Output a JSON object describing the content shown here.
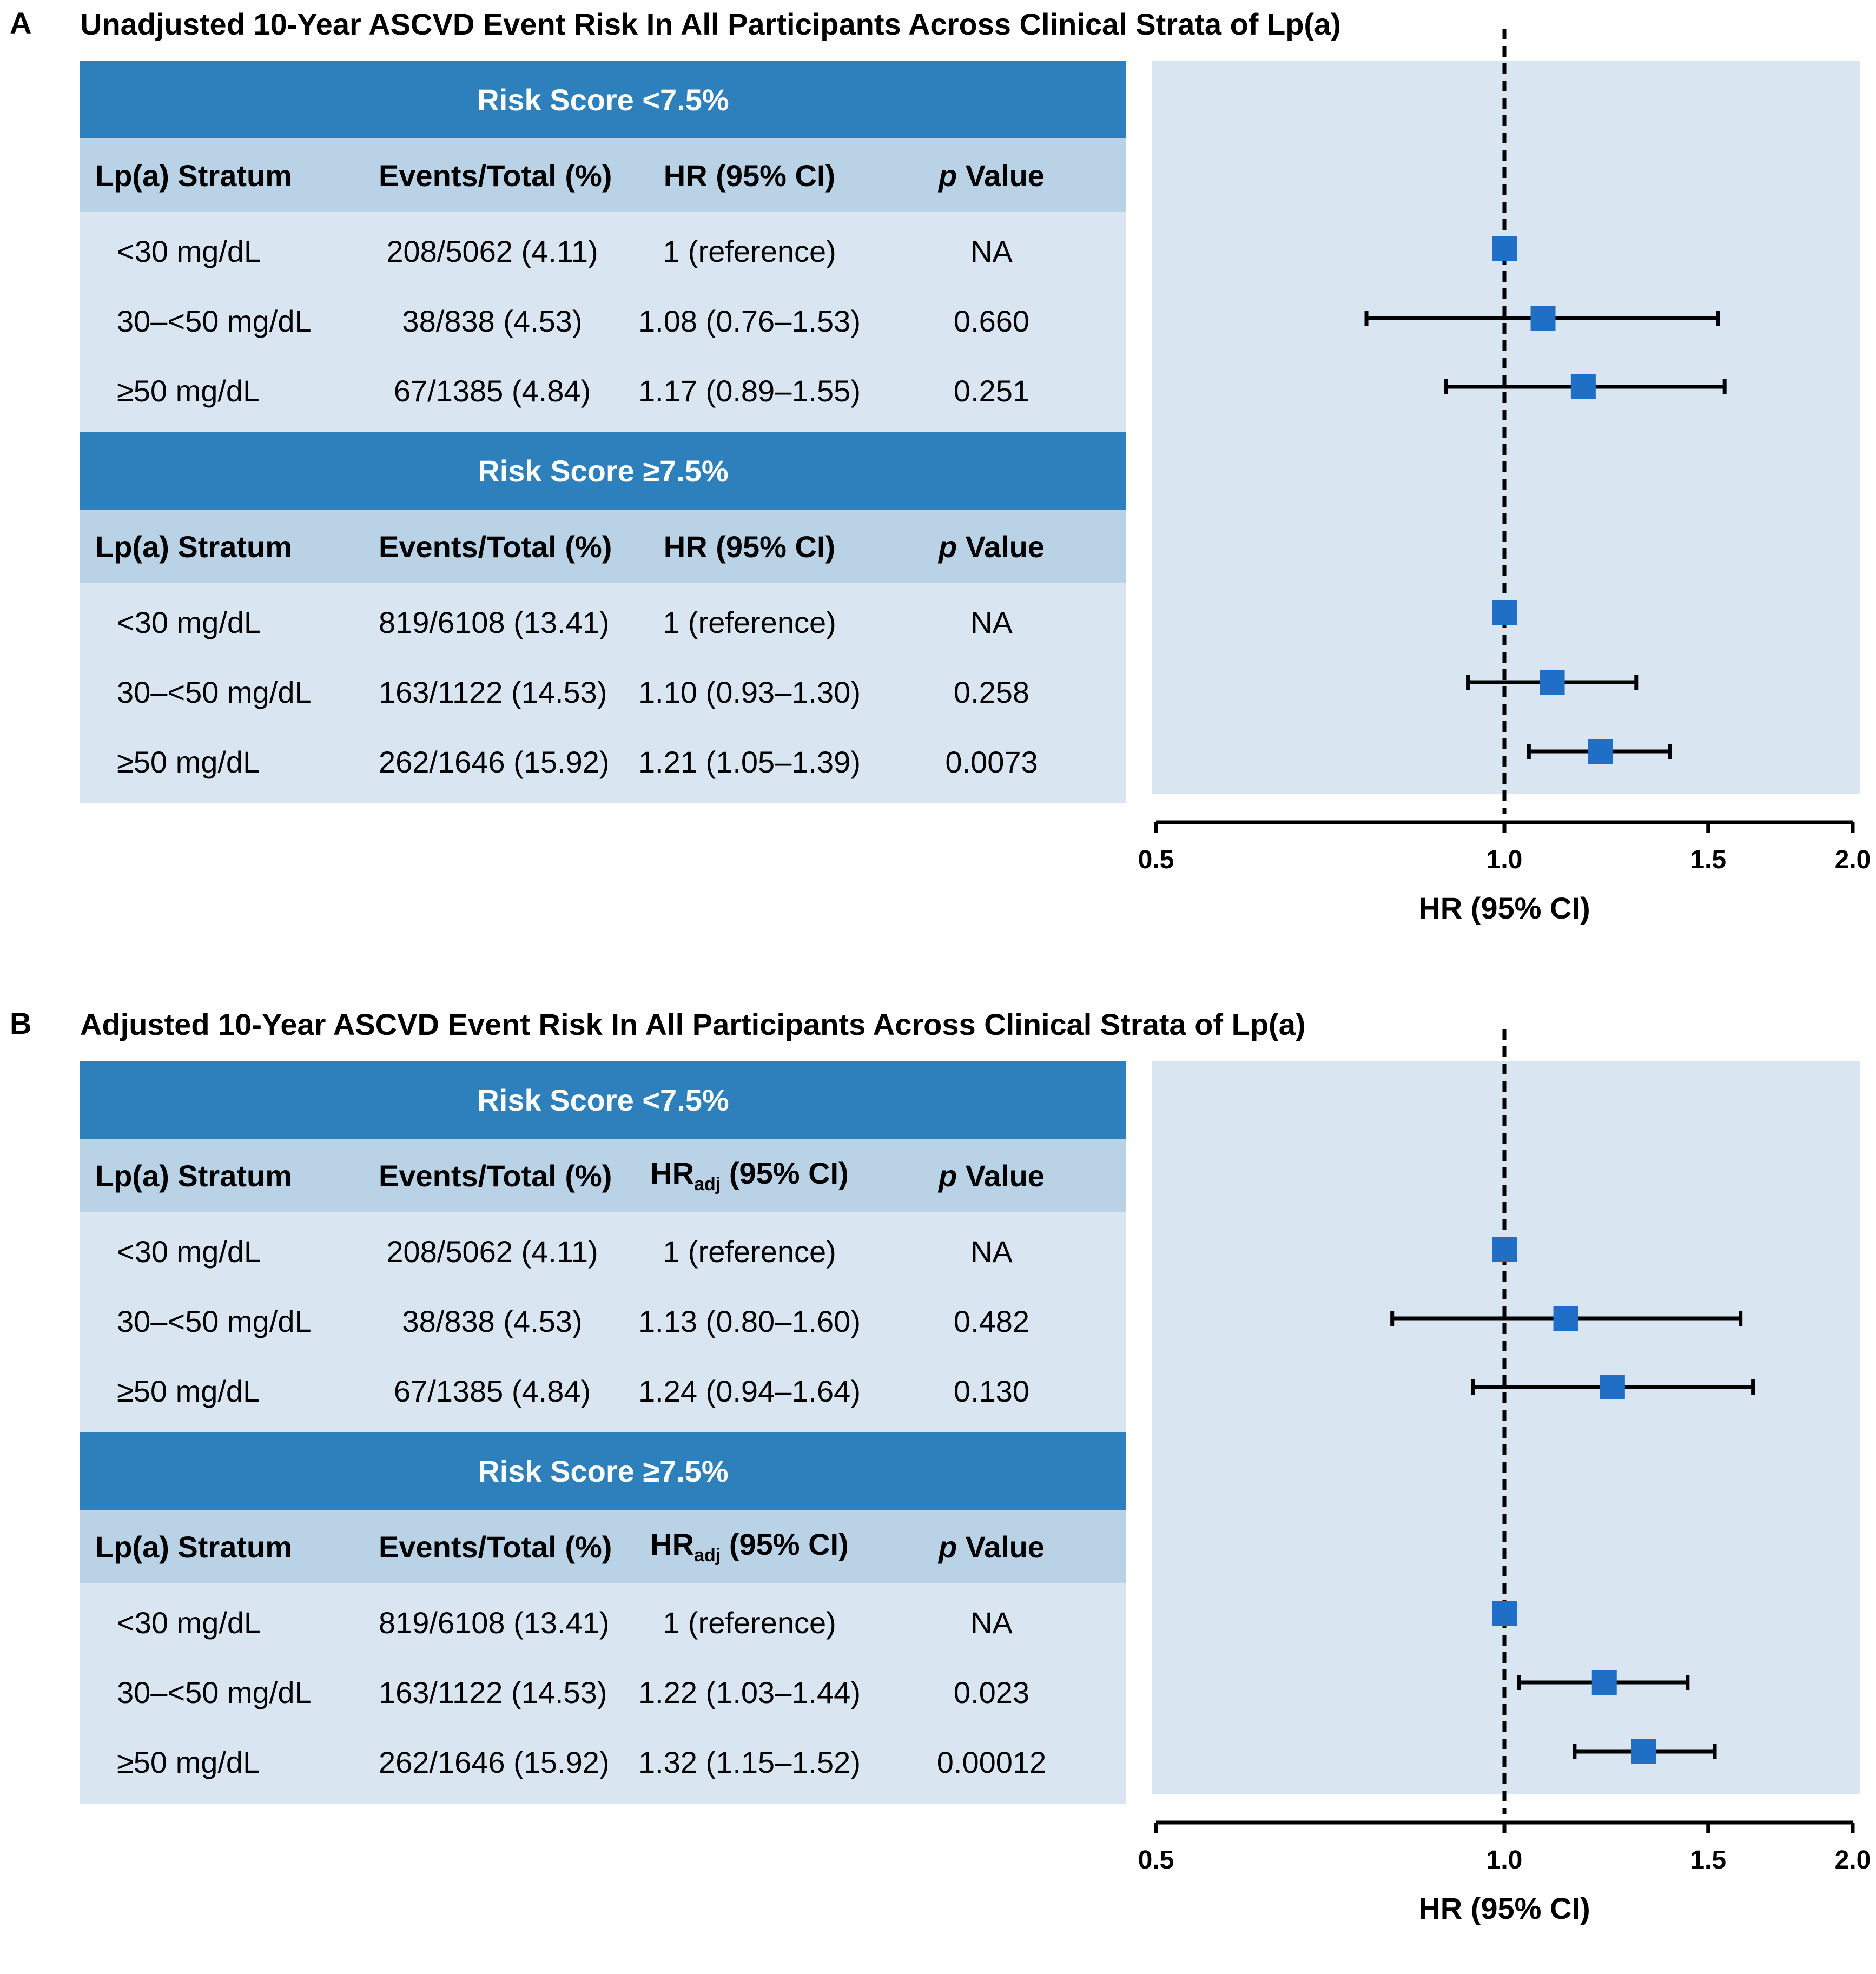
{
  "chart_data": [
    {
      "type": "forest",
      "panel": "A",
      "title": "Unadjusted 10-Year ASCVD Event Risk In All Participants Across Clinical Strata of Lp(a)",
      "columns": [
        "Lp(a) Stratum",
        "Events/Total (%)",
        "HR (95% CI)",
        "p Value"
      ],
      "groups": [
        {
          "name": "Risk Score <7.5%",
          "rows": [
            {
              "stratum": "<30 mg/dL",
              "events": "208/5062 (4.11)",
              "hr_text": "1 (reference)",
              "p": "NA",
              "hr": 1.0,
              "lo": null,
              "hi": null
            },
            {
              "stratum": "30–<50 mg/dL",
              "events": "38/838 (4.53)",
              "hr_text": "1.08 (0.76–1.53)",
              "p": "0.660",
              "hr": 1.08,
              "lo": 0.76,
              "hi": 1.53
            },
            {
              "stratum": "≥50 mg/dL",
              "events": "67/1385 (4.84)",
              "hr_text": "1.17 (0.89–1.55)",
              "p": "0.251",
              "hr": 1.17,
              "lo": 0.89,
              "hi": 1.55
            }
          ]
        },
        {
          "name": "Risk Score ≥7.5%",
          "rows": [
            {
              "stratum": "<30 mg/dL",
              "events": "819/6108 (13.41)",
              "hr_text": "1 (reference)",
              "p": "NA",
              "hr": 1.0,
              "lo": null,
              "hi": null
            },
            {
              "stratum": "30–<50 mg/dL",
              "events": "163/1122 (14.53)",
              "hr_text": "1.10 (0.93–1.30)",
              "p": "0.258",
              "hr": 1.1,
              "lo": 0.93,
              "hi": 1.3
            },
            {
              "stratum": "≥50 mg/dL",
              "events": "262/1646 (15.92)",
              "hr_text": "1.21 (1.05–1.39)",
              "p": "0.0073",
              "hr": 1.21,
              "lo": 1.05,
              "hi": 1.39
            }
          ]
        }
      ],
      "xlabel": "HR (95% CI)",
      "xticks": [
        "0.5",
        "1.0",
        "1.5",
        "2.0"
      ],
      "xscale": "log",
      "xlim": [
        0.5,
        2.0
      ],
      "reference_line": 1.0
    },
    {
      "type": "forest",
      "panel": "B",
      "title": "Adjusted 10-Year ASCVD Event Risk In All Participants Across Clinical Strata of Lp(a)",
      "columns": [
        "Lp(a) Stratum",
        "Events/Total (%)",
        "HR",
        "adj",
        "(95% CI)",
        "p Value"
      ],
      "groups": [
        {
          "name": "Risk Score <7.5%",
          "rows": [
            {
              "stratum": "<30 mg/dL",
              "events": "208/5062 (4.11)",
              "hr_text": "1 (reference)",
              "p": "NA",
              "hr": 1.0,
              "lo": null,
              "hi": null
            },
            {
              "stratum": "30–<50 mg/dL",
              "events": "38/838 (4.53)",
              "hr_text": "1.13 (0.80–1.60)",
              "p": "0.482",
              "hr": 1.13,
              "lo": 0.8,
              "hi": 1.6
            },
            {
              "stratum": "≥50 mg/dL",
              "events": "67/1385 (4.84)",
              "hr_text": "1.24 (0.94–1.64)",
              "p": "0.130",
              "hr": 1.24,
              "lo": 0.94,
              "hi": 1.64
            }
          ]
        },
        {
          "name": "Risk Score ≥7.5%",
          "rows": [
            {
              "stratum": "<30 mg/dL",
              "events": "819/6108 (13.41)",
              "hr_text": "1 (reference)",
              "p": "NA",
              "hr": 1.0,
              "lo": null,
              "hi": null
            },
            {
              "stratum": "30–<50 mg/dL",
              "events": "163/1122 (14.53)",
              "hr_text": "1.22 (1.03–1.44)",
              "p": "0.023",
              "hr": 1.22,
              "lo": 1.03,
              "hi": 1.44
            },
            {
              "stratum": "≥50 mg/dL",
              "events": "262/1646 (15.92)",
              "hr_text": "1.32 (1.15–1.52)",
              "p": "0.00012",
              "hr": 1.32,
              "lo": 1.15,
              "hi": 1.52
            }
          ]
        }
      ],
      "xlabel": "HR (95% CI)",
      "xticks": [
        "0.5",
        "1.0",
        "1.5",
        "2.0"
      ],
      "xscale": "log",
      "xlim": [
        0.5,
        2.0
      ],
      "reference_line": 1.0
    }
  ],
  "colors": {
    "band": "#2e80bc",
    "header": "#b9d2e6",
    "rows": "#d9e6f1",
    "marker": "#1f6fc7",
    "ci_line": "#000000"
  }
}
